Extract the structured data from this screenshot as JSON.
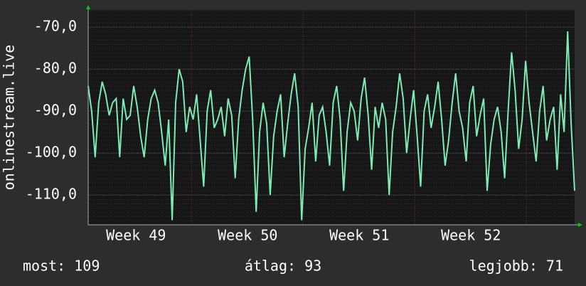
{
  "chart_data": {
    "type": "line",
    "ylabel": "onlinestream.live",
    "color": "#7debb4",
    "grid": true,
    "ylim": [
      -117.1,
      -65.9
    ],
    "yticks": [
      {
        "value": -110,
        "label": "-110,0"
      },
      {
        "value": -100,
        "label": "-100,0"
      },
      {
        "value": -90,
        "label": "-90,0"
      },
      {
        "value": -80,
        "label": "-80,0"
      },
      {
        "value": -70,
        "label": "-70,0"
      }
    ],
    "xlim": [
      0,
      30.5
    ],
    "xticks": [
      {
        "value": 3,
        "label": "Week 49"
      },
      {
        "value": 10,
        "label": "Week 50"
      },
      {
        "value": 17,
        "label": "Week 51"
      },
      {
        "value": 24,
        "label": "Week 52"
      }
    ],
    "values": [
      -84,
      -90,
      -101,
      -88,
      -83,
      -86,
      -91,
      -88,
      -87,
      -101,
      -87,
      -92,
      -91,
      -84,
      -89,
      -96,
      -101,
      -92,
      -87,
      -85,
      -88,
      -95,
      -103,
      -92,
      -116,
      -88,
      -80,
      -83,
      -95,
      -89,
      -92,
      -86,
      -97,
      -108,
      -90,
      -85,
      -94,
      -92,
      -89,
      -96,
      -87,
      -91,
      -106,
      -92,
      -85,
      -80,
      -77,
      -92,
      -114,
      -95,
      -88,
      -93,
      -110,
      -96,
      -90,
      -86,
      -101,
      -93,
      -86,
      -81,
      -89,
      -116,
      -99,
      -94,
      -88,
      -102,
      -91,
      -89,
      -95,
      -103,
      -88,
      -84,
      -92,
      -109,
      -95,
      -88,
      -90,
      -97,
      -87,
      -82,
      -91,
      -104,
      -89,
      -94,
      -88,
      -92,
      -110,
      -95,
      -89,
      -81,
      -87,
      -100,
      -92,
      -85,
      -96,
      -108,
      -90,
      -86,
      -94,
      -89,
      -83,
      -92,
      -103,
      -97,
      -88,
      -81,
      -90,
      -94,
      -102,
      -88,
      -84,
      -96,
      -91,
      -87,
      -109,
      -98,
      -92,
      -89,
      -95,
      -106,
      -90,
      -76,
      -85,
      -99,
      -92,
      -78,
      -88,
      -95,
      -102,
      -90,
      -84,
      -97,
      -92,
      -89,
      -104,
      -86,
      -95,
      -71,
      -93,
      -109
    ],
    "footer": {
      "current": "most: 109",
      "average": "átlag: 93",
      "best": "legjobb: 71"
    }
  }
}
